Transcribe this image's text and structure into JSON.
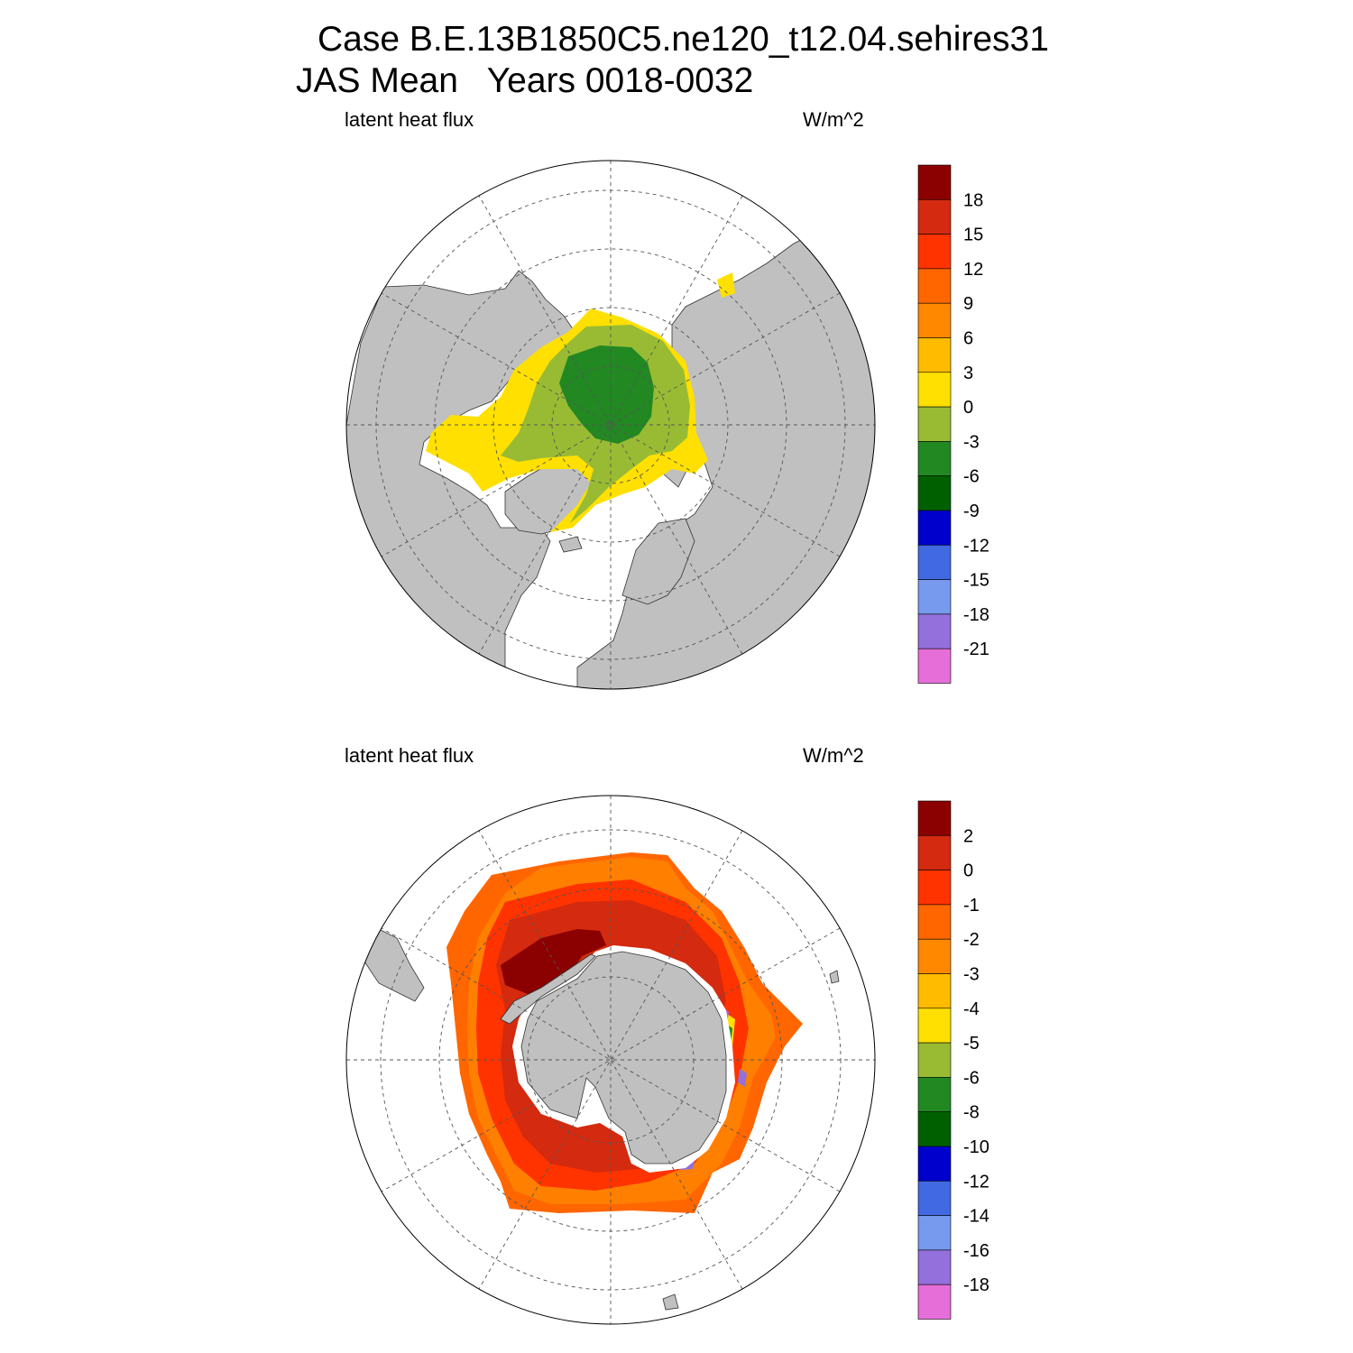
{
  "header": {
    "case_line": "Case B.E.13B1850C5.ne120_t12.04.sehires31",
    "period_line": "JAS Mean   Years 0018-0032"
  },
  "colors": {
    "land": "#c0c0c0",
    "ocean_no_data": "#ffffff",
    "grid": "#555555"
  },
  "panels": [
    {
      "id": "north",
      "hemisphere": "Arctic",
      "variable_label": "latent heat flux",
      "units_label": "W/m^2",
      "colorbar": {
        "colors": [
          "#8b0000",
          "#d42a10",
          "#ff3300",
          "#ff6600",
          "#ff8800",
          "#ffbb00",
          "#ffe000",
          "#99bb33",
          "#228822",
          "#006000",
          "#0000cc",
          "#4169e1",
          "#7799ee",
          "#9370db",
          "#e66ed9"
        ],
        "labels": [
          "18",
          "15",
          "12",
          "9",
          "6",
          "3",
          "0",
          "-3",
          "-6",
          "-9",
          "-12",
          "-15",
          "-18",
          "-21"
        ]
      }
    },
    {
      "id": "south",
      "hemisphere": "Antarctic",
      "variable_label": "latent heat flux",
      "units_label": "W/m^2",
      "colorbar": {
        "colors": [
          "#8b0000",
          "#d42a10",
          "#ff3300",
          "#ff6600",
          "#ff8800",
          "#ffbb00",
          "#ffe000",
          "#99bb33",
          "#228822",
          "#006000",
          "#0000cc",
          "#4169e1",
          "#7799ee",
          "#9370db",
          "#e66ed9"
        ],
        "labels": [
          "2",
          "0",
          "-1",
          "-2",
          "-3",
          "-4",
          "-5",
          "-6",
          "-8",
          "-10",
          "-12",
          "-14",
          "-16",
          "-18"
        ]
      }
    }
  ]
}
